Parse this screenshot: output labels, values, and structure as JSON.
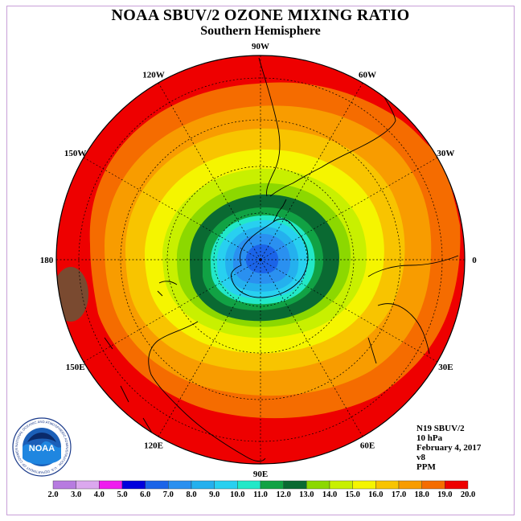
{
  "title": "NOAA SBUV/2 OZONE MIXING RATIO",
  "subtitle": "Southern Hemisphere",
  "longitude_labels": [
    "90W",
    "60W",
    "30W",
    "0",
    "30E",
    "60E",
    "90E",
    "120E",
    "150E",
    "180",
    "150W",
    "120W"
  ],
  "info": {
    "satellite": "N19 SBUV/2",
    "level": "10 hPa",
    "date": "February 4, 2017",
    "version": "v8",
    "units": "PPM"
  },
  "logo": {
    "text": "NOAA",
    "ring_text": "NATIONAL OCEANIC AND ATMOSPHERIC ADMINISTRATION · U.S. DEPARTMENT OF COMMERCE"
  },
  "colorbar": {
    "labels": [
      "2.0",
      "3.0",
      "4.0",
      "5.0",
      "6.0",
      "7.0",
      "8.0",
      "9.0",
      "10.0",
      "11.0",
      "12.0",
      "13.0",
      "14.0",
      "15.0",
      "16.0",
      "17.0",
      "18.0",
      "19.0",
      "20.0"
    ],
    "colors": [
      "#b77be0",
      "#dba8ee",
      "#ef1cef",
      "#0000dd",
      "#1b64e8",
      "#2a90f0",
      "#24b0ee",
      "#28d0f0",
      "#22e8c8",
      "#11a244",
      "#0a6a32",
      "#8cd800",
      "#c8f000",
      "#f5f500",
      "#f8c400",
      "#f89c00",
      "#f56c00",
      "#ee0000",
      "#7a4a30"
    ]
  },
  "map_levels": [
    {
      "ppm": 19,
      "color": "#ee0000"
    },
    {
      "ppm": 18,
      "color": "#f56c00"
    },
    {
      "ppm": 17,
      "color": "#f89c00"
    },
    {
      "ppm": 16,
      "color": "#f8c400"
    },
    {
      "ppm": 15,
      "color": "#f5f500"
    },
    {
      "ppm": 14,
      "color": "#c8f000"
    },
    {
      "ppm": 13,
      "color": "#8cd800"
    },
    {
      "ppm": 12,
      "color": "#0a6a32"
    },
    {
      "ppm": 11,
      "color": "#11a244"
    },
    {
      "ppm": 10,
      "color": "#22e8c8"
    },
    {
      "ppm": 9,
      "color": "#28d0f0"
    },
    {
      "ppm": 8,
      "color": "#24b0ee"
    },
    {
      "ppm": 7,
      "color": "#2a90f0"
    },
    {
      "ppm": 6,
      "color": "#1b64e8"
    }
  ]
}
